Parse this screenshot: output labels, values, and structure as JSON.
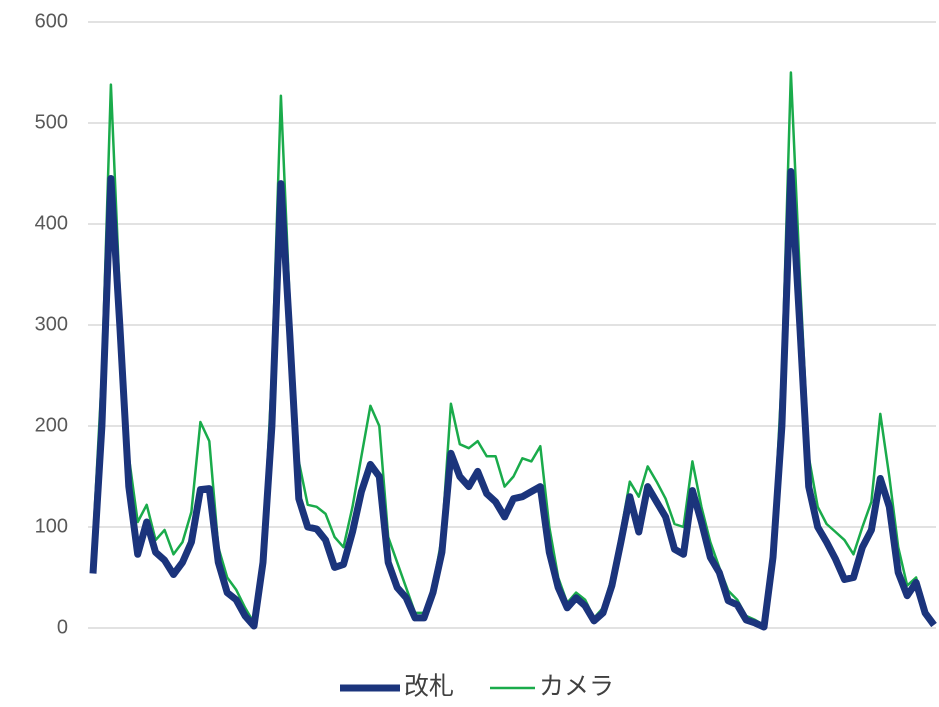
{
  "chart_data": {
    "type": "line",
    "categories": [
      null,
      null,
      null,
      null,
      null,
      null,
      null,
      null,
      null,
      null,
      null,
      null,
      null,
      null,
      null,
      null,
      null,
      null,
      null,
      null,
      null,
      null,
      null,
      null,
      null,
      null,
      null,
      null,
      null,
      null,
      null,
      null,
      null,
      null,
      null,
      null,
      null,
      null,
      null,
      null,
      null,
      null,
      null,
      null,
      null,
      null,
      null,
      null,
      null,
      null,
      null,
      null,
      null,
      null,
      null,
      null,
      null,
      null,
      null,
      null,
      null,
      null,
      null,
      null,
      null,
      null,
      null,
      null,
      null,
      null,
      null,
      null,
      null,
      null,
      null,
      null,
      null,
      null,
      null,
      null,
      null,
      null,
      null,
      null,
      null,
      null,
      null,
      null,
      null,
      null,
      null,
      null,
      null,
      null,
      null
    ],
    "series": [
      {
        "name": "改札",
        "color": "#1b347c",
        "values": [
          54,
          200,
          445,
          300,
          140,
          73,
          105,
          75,
          67,
          53,
          65,
          85,
          137,
          138,
          65,
          35,
          28,
          12,
          2,
          65,
          200,
          440,
          290,
          128,
          100,
          98,
          87,
          60,
          63,
          95,
          135,
          162,
          150,
          65,
          40,
          30,
          10,
          10,
          35,
          75,
          173,
          150,
          140,
          155,
          133,
          125,
          110,
          128,
          130,
          135,
          140,
          75,
          40,
          20,
          30,
          22,
          7,
          15,
          42,
          85,
          130,
          95,
          140,
          125,
          110,
          78,
          73,
          136,
          105,
          70,
          55,
          27,
          23,
          8,
          5,
          1,
          70,
          200,
          452,
          300,
          140,
          100,
          85,
          68,
          48,
          50,
          80,
          97,
          148,
          120,
          55,
          32,
          45,
          15,
          3
        ]
      },
      {
        "name": "カメラ",
        "color": "#1aab4b",
        "values": [
          85,
          250,
          538,
          330,
          170,
          105,
          122,
          87,
          97,
          73,
          85,
          115,
          204,
          185,
          80,
          50,
          38,
          20,
          5,
          75,
          250,
          527,
          320,
          165,
          122,
          120,
          113,
          90,
          80,
          120,
          170,
          220,
          200,
          90,
          65,
          40,
          15,
          15,
          40,
          90,
          222,
          182,
          178,
          185,
          170,
          170,
          140,
          150,
          168,
          165,
          180,
          100,
          50,
          25,
          35,
          28,
          10,
          20,
          50,
          95,
          145,
          130,
          160,
          145,
          128,
          103,
          100,
          165,
          120,
          85,
          60,
          37,
          28,
          12,
          8,
          3,
          80,
          250,
          550,
          350,
          170,
          120,
          103,
          95,
          87,
          73,
          100,
          125,
          212,
          150,
          80,
          42,
          50,
          15,
          5
        ]
      }
    ],
    "ylim": [
      0,
      600
    ],
    "yticks": [
      0,
      100,
      200,
      300,
      400,
      500,
      600
    ],
    "grid": true,
    "legend": "bottom"
  }
}
